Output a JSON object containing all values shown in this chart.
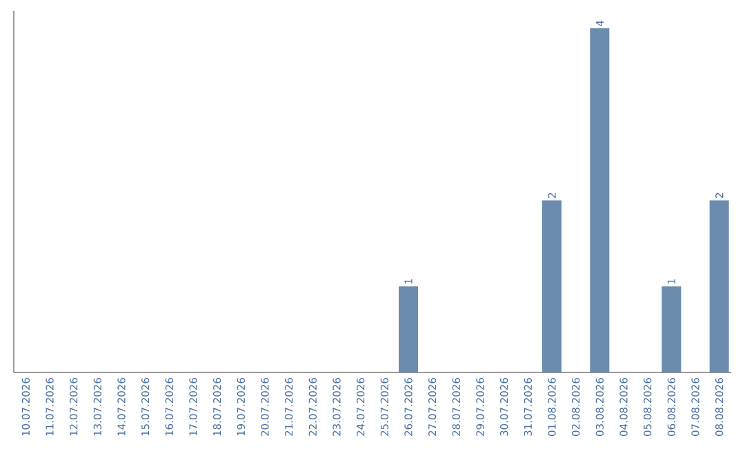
{
  "chart_data": {
    "type": "bar",
    "categories": [
      "10.07.2026",
      "11.07.2026",
      "12.07.2026",
      "13.07.2026",
      "14.07.2026",
      "15.07.2026",
      "16.07.2026",
      "17.07.2026",
      "18.07.2026",
      "19.07.2026",
      "20.07.2026",
      "21.07.2026",
      "22.07.2026",
      "23.07.2026",
      "24.07.2026",
      "25.07.2026",
      "26.07.2026",
      "27.07.2026",
      "28.07.2026",
      "29.07.2026",
      "30.07.2026",
      "31.07.2026",
      "01.08.2026",
      "02.08.2026",
      "03.08.2026",
      "04.08.2026",
      "05.08.2026",
      "06.08.2026",
      "07.08.2026",
      "08.08.2026"
    ],
    "values": [
      null,
      null,
      null,
      null,
      null,
      null,
      null,
      null,
      null,
      null,
      null,
      null,
      null,
      null,
      null,
      null,
      1,
      null,
      null,
      null,
      null,
      null,
      2,
      null,
      4,
      null,
      null,
      1,
      null,
      2
    ],
    "data_labels": true,
    "color": "#6b8cae"
  }
}
